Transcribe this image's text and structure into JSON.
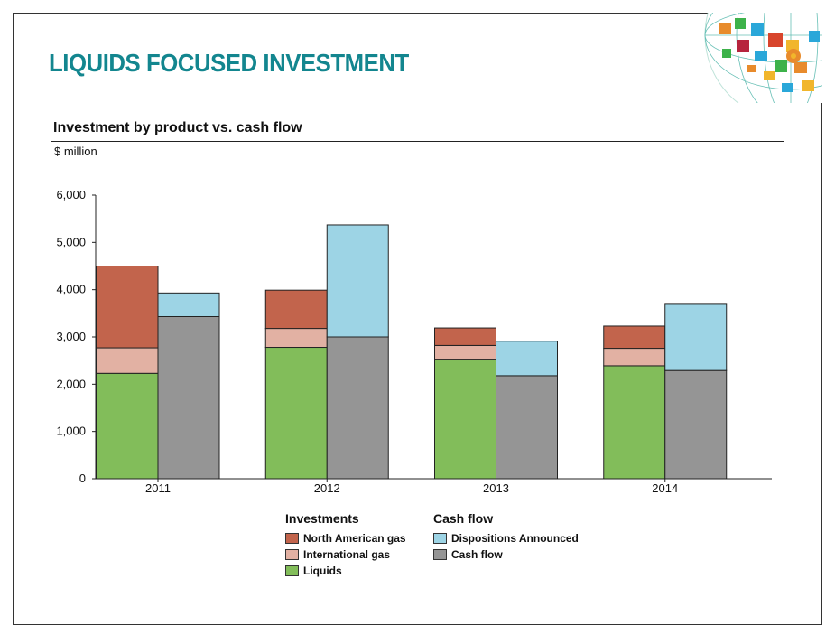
{
  "page": {
    "title": "LIQUIDS FOCUSED INVESTMENT",
    "subtitle": "Investment by product vs. cash flow",
    "unit": "$ million"
  },
  "chart_data": {
    "type": "bar",
    "stacked": true,
    "categories": [
      "2011",
      "2012",
      "2013",
      "2014"
    ],
    "ylim": [
      0,
      6000
    ],
    "yticks": [
      "0",
      "1,000",
      "2,000",
      "3,000",
      "4,000",
      "5,000",
      "6,000"
    ],
    "grid": false,
    "investments": {
      "label": "Investments",
      "series": [
        {
          "name": "Liquids",
          "color": "#82bd5a",
          "values": [
            2230,
            2780,
            2530,
            2390
          ]
        },
        {
          "name": "International gas",
          "color": "#e2b1a3",
          "values": [
            540,
            400,
            290,
            370
          ]
        },
        {
          "name": "North American gas",
          "color": "#c2644c",
          "values": [
            1730,
            810,
            370,
            470
          ]
        }
      ]
    },
    "cash_flow": {
      "label": "Cash flow",
      "series": [
        {
          "name": "Cash flow",
          "color": "#959595",
          "values": [
            3430,
            3000,
            2180,
            2290
          ]
        },
        {
          "name": "Dispositions Announced",
          "color": "#9dd4e5",
          "values": [
            500,
            2370,
            730,
            1400
          ]
        }
      ]
    },
    "legend": {
      "investments": [
        "North American gas",
        "International gas",
        "Liquids"
      ],
      "cash_flow": [
        "Dispositions Announced",
        "Cash flow"
      ]
    }
  }
}
